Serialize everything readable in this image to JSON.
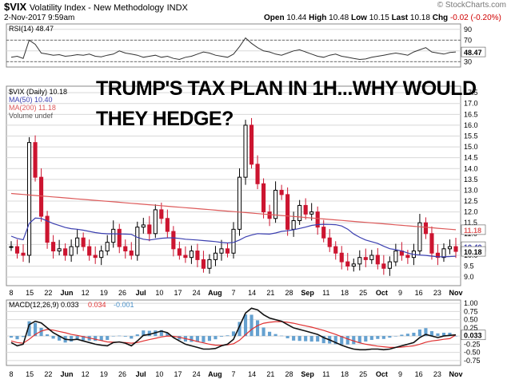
{
  "header": {
    "symbol": "$VIX",
    "name": "Volatility Index - New Methodology",
    "exchange": "INDX",
    "datetime": "2-Nov-2017 9:59am",
    "open_label": "Open",
    "open": "10.44",
    "high_label": "High",
    "high": "10.48",
    "low_label": "Low",
    "low": "10.15",
    "last_label": "Last",
    "last": "10.18",
    "chg_label": "Chg",
    "chg": "-0.02 (-0.20%)",
    "watermark": "© StockCharts.com"
  },
  "overlay_text": {
    "line1": "TRUMP'S TAX PLAN IN 1H...WHY WOULD",
    "line2": "THEY HEDGE?"
  },
  "colors": {
    "up": "#000000",
    "down": "#cc1530",
    "ma50": "#3b3fb0",
    "ma200": "#dd5a5a",
    "macd": "#111111",
    "signal": "#e03030",
    "hist": "#4a90c8",
    "rsi": "#333333",
    "rsi_fill": "#6aa86a",
    "grid": "#d8d8d8"
  },
  "chart_data": [
    {
      "type": "line",
      "panel": "rsi",
      "legend": "RSI(14) 48.47",
      "ylim": [
        20,
        100
      ],
      "ticks": [
        30,
        50,
        70,
        90
      ],
      "levels": [
        30,
        70
      ],
      "last_label": "48.47",
      "values": [
        38,
        40,
        36,
        70,
        62,
        46,
        44,
        42,
        43,
        40,
        41,
        43,
        42,
        44,
        40,
        39,
        42,
        44,
        50,
        46,
        44,
        42,
        38,
        40,
        42,
        38,
        40,
        36,
        34,
        38,
        40,
        44,
        48,
        46,
        42,
        40,
        38,
        44,
        58,
        74,
        64,
        56,
        50,
        48,
        44,
        42,
        46,
        50,
        52,
        48,
        44,
        40,
        38,
        42,
        44,
        40,
        38,
        36,
        34,
        35,
        38,
        40,
        42,
        44,
        46,
        44,
        42,
        48,
        52,
        56,
        48,
        46,
        44,
        47,
        48
      ]
    },
    {
      "type": "candlestick",
      "panel": "price",
      "legend": [
        "$VIX (Daily) 10.18",
        "MA(50) 10.40",
        "MA(200) 11.18",
        "Volume undef"
      ],
      "ylim": [
        8.6,
        17.8
      ],
      "ticks": [
        9.0,
        9.5,
        10.0,
        10.5,
        11.0,
        11.5,
        12.0,
        12.5,
        13.0,
        13.5,
        14.0,
        14.5,
        15.0,
        15.5,
        16.0,
        16.5,
        17.0,
        17.5
      ],
      "last_labels": {
        "ma200": "11.18",
        "ma50": "10.40",
        "close": "10.18"
      },
      "x_labels": [
        "8",
        "15",
        "22",
        "Jun",
        "12",
        "19",
        "26",
        "Jul",
        "10",
        "17",
        "24",
        "Aug",
        "7",
        "14",
        "21",
        "28",
        "Sep",
        "11",
        "18",
        "25",
        "Oct",
        "9",
        "16",
        "23",
        "Nov"
      ],
      "closes": [
        10.4,
        10.1,
        10.0,
        15.2,
        13.6,
        11.8,
        10.6,
        10.2,
        10.3,
        10.0,
        10.4,
        10.8,
        10.4,
        10.0,
        9.9,
        10.2,
        10.6,
        11.2,
        10.4,
        10.2,
        10.0,
        11.3,
        11.4,
        11.0,
        12.1,
        11.7,
        11.1,
        10.3,
        10.0,
        9.9,
        10.2,
        9.8,
        9.4,
        9.8,
        10.1,
        10.3,
        10.1,
        11.2,
        13.6,
        16.0,
        14.2,
        13.3,
        12.0,
        11.7,
        13.0,
        12.8,
        11.2,
        11.6,
        12.3,
        11.9,
        12.0,
        11.3,
        10.8,
        10.4,
        10.1,
        9.7,
        9.5,
        9.6,
        9.9,
        9.8,
        10.0,
        9.6,
        9.4,
        9.7,
        10.2,
        10.0,
        9.9,
        10.2,
        11.5,
        11.0,
        10.1,
        9.9,
        10.3,
        10.4,
        10.18
      ]
    },
    {
      "type": "line",
      "panel": "macd",
      "legend": [
        "MACD(12,26,9) 0.033",
        "0.034",
        "-0.001"
      ],
      "ylim": [
        -0.9,
        1.1
      ],
      "ticks": [
        -0.75,
        -0.5,
        -0.25,
        0.0,
        0.25,
        0.5,
        0.75,
        1.0
      ],
      "last_label": "0.033",
      "macd": [
        -0.2,
        -0.3,
        -0.25,
        0.35,
        0.45,
        0.4,
        0.25,
        0.1,
        0.0,
        -0.1,
        -0.12,
        -0.1,
        -0.15,
        -0.2,
        -0.25,
        -0.28,
        -0.3,
        -0.2,
        -0.18,
        -0.22,
        -0.3,
        -0.15,
        0.02,
        0.05,
        0.1,
        0.15,
        0.1,
        -0.05,
        -0.15,
        -0.25,
        -0.3,
        -0.35,
        -0.4,
        -0.4,
        -0.38,
        -0.3,
        -0.25,
        -0.1,
        0.3,
        0.7,
        0.85,
        0.8,
        0.65,
        0.55,
        0.5,
        0.45,
        0.35,
        0.25,
        0.2,
        0.15,
        0.1,
        0.05,
        -0.05,
        -0.12,
        -0.2,
        -0.28,
        -0.35,
        -0.4,
        -0.42,
        -0.42,
        -0.4,
        -0.4,
        -0.42,
        -0.4,
        -0.35,
        -0.3,
        -0.25,
        -0.2,
        -0.05,
        0.05,
        0.0,
        -0.05,
        0.0,
        0.02,
        0.033
      ],
      "signal": [
        -0.15,
        -0.2,
        -0.22,
        -0.1,
        0.05,
        0.15,
        0.2,
        0.18,
        0.14,
        0.1,
        0.05,
        0.02,
        -0.02,
        -0.06,
        -0.1,
        -0.14,
        -0.18,
        -0.19,
        -0.19,
        -0.2,
        -0.22,
        -0.2,
        -0.15,
        -0.11,
        -0.07,
        -0.03,
        0.0,
        -0.01,
        -0.04,
        -0.08,
        -0.12,
        -0.17,
        -0.21,
        -0.25,
        -0.28,
        -0.28,
        -0.27,
        -0.24,
        -0.13,
        0.04,
        0.2,
        0.32,
        0.39,
        0.42,
        0.44,
        0.44,
        0.42,
        0.39,
        0.35,
        0.31,
        0.27,
        0.22,
        0.17,
        0.11,
        0.05,
        -0.02,
        -0.09,
        -0.15,
        -0.21,
        -0.25,
        -0.28,
        -0.31,
        -0.33,
        -0.35,
        -0.35,
        -0.34,
        -0.32,
        -0.3,
        -0.25,
        -0.19,
        -0.15,
        -0.13,
        -0.1,
        -0.08,
        0.034
      ]
    }
  ]
}
